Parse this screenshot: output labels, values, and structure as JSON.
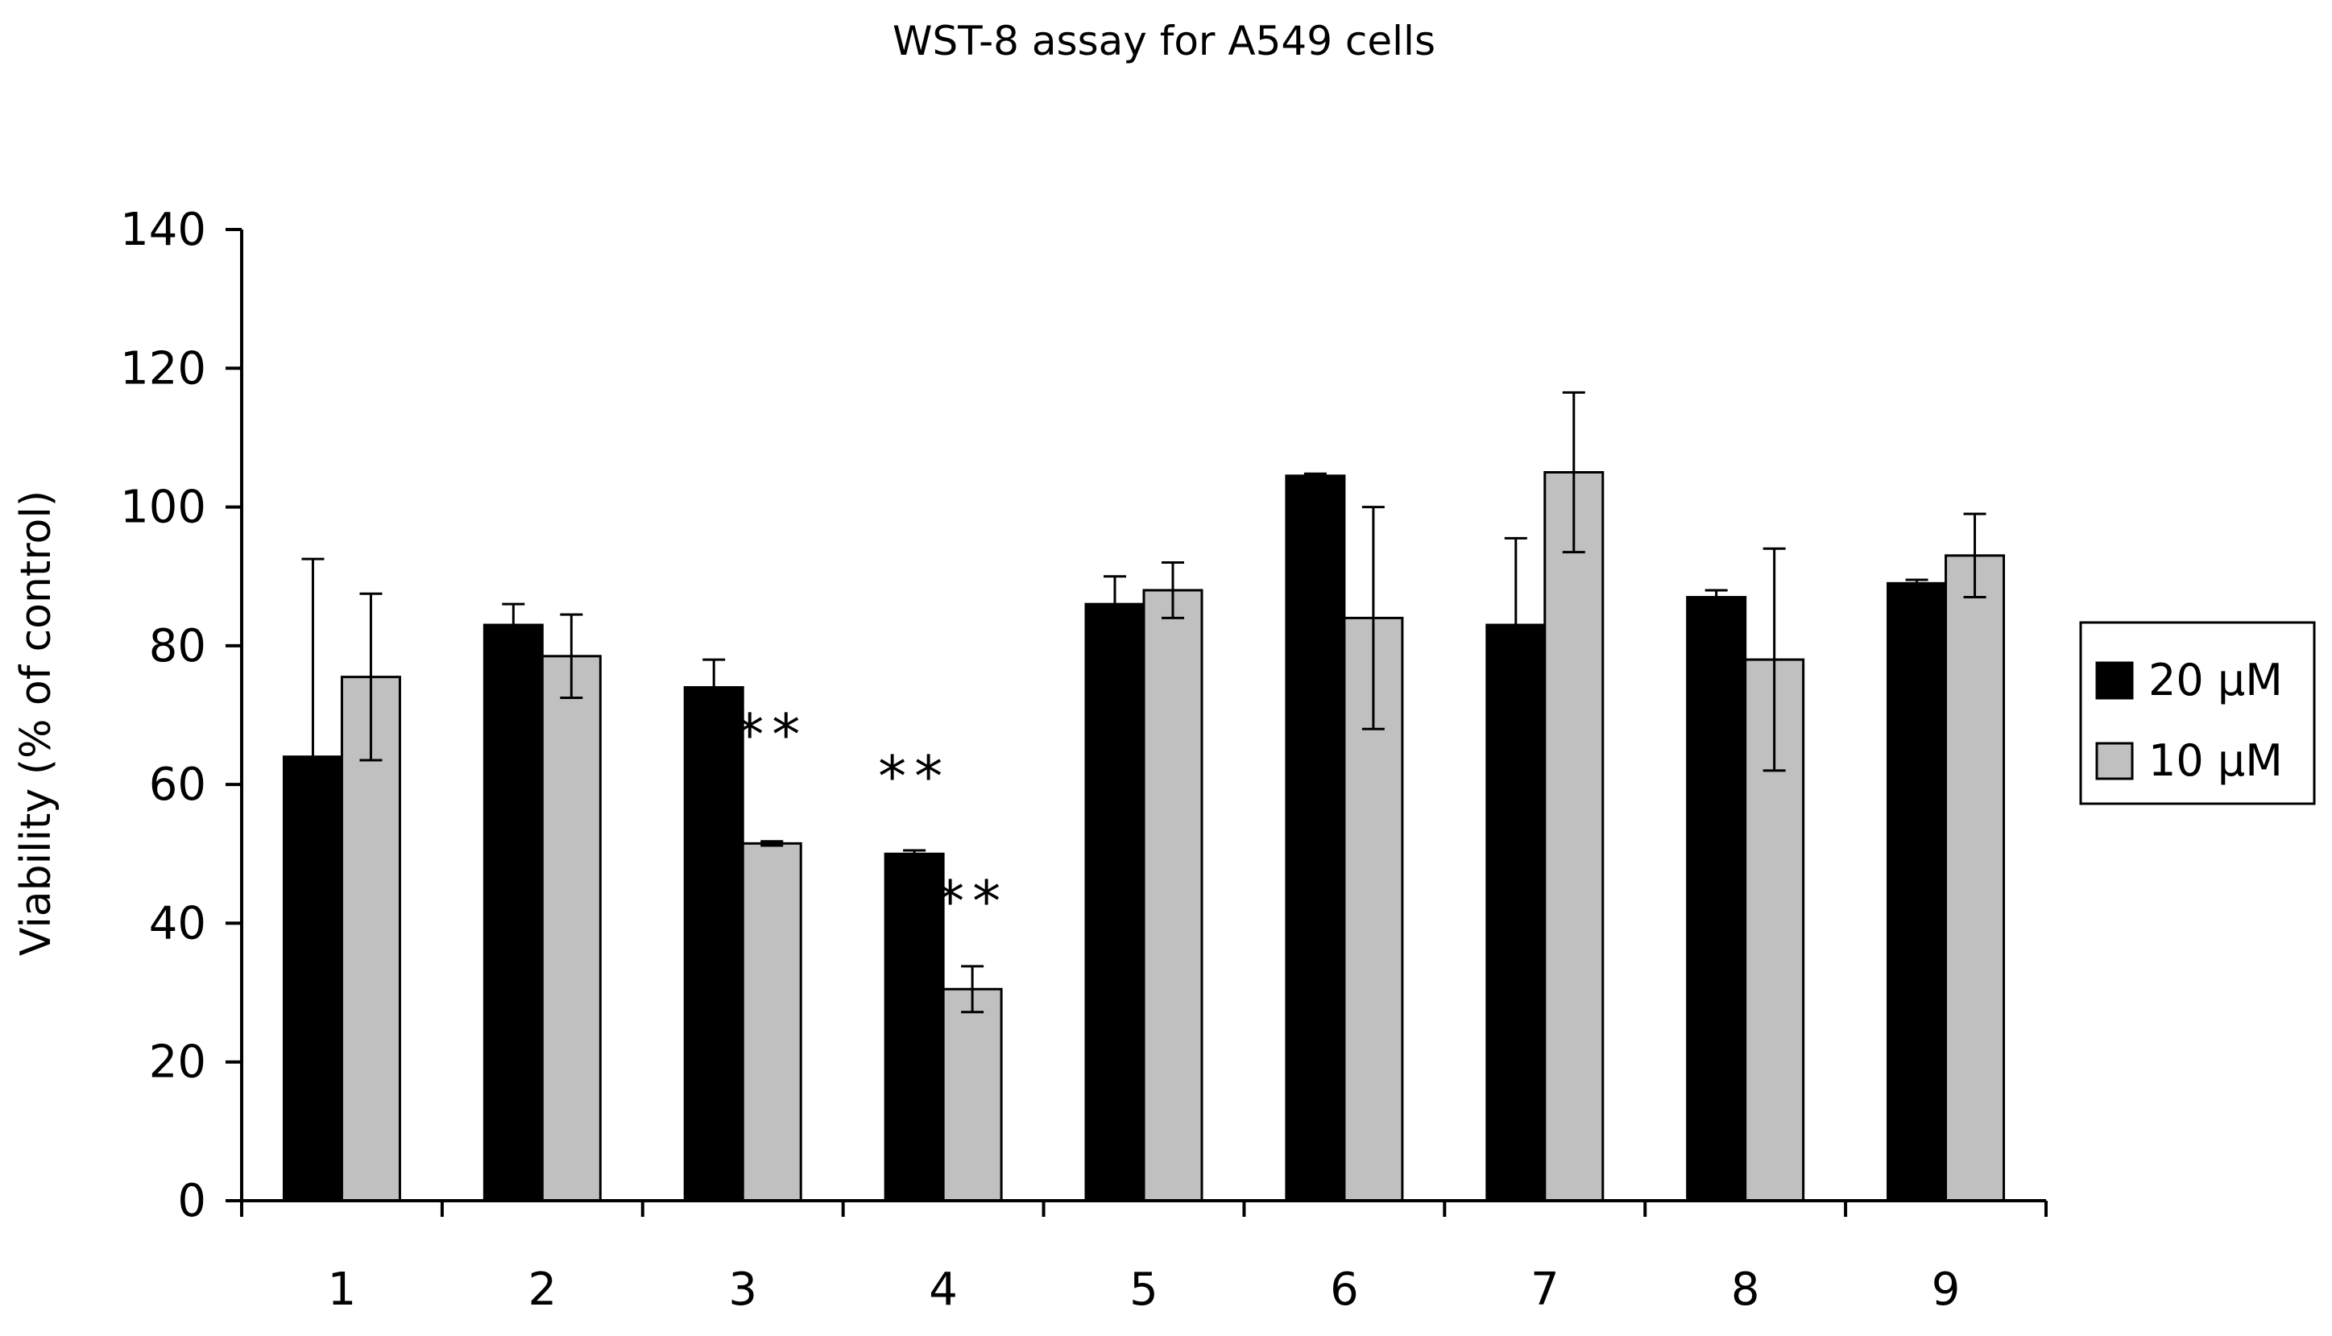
{
  "chart_data": {
    "type": "bar",
    "title": "WST-8 assay for A549 cells",
    "xlabel": "",
    "ylabel": "Viability (% of control)",
    "ylim": [
      0,
      140
    ],
    "yticks": [
      0,
      20,
      40,
      60,
      80,
      100,
      120,
      140
    ],
    "categories": [
      "1",
      "2",
      "3",
      "4",
      "5",
      "6",
      "7",
      "8",
      "9"
    ],
    "series": [
      {
        "name": "20 µM",
        "color": "#000000",
        "values": [
          64,
          83,
          74,
          50,
          86,
          104.5,
          83,
          87,
          89
        ],
        "errors": [
          28.5,
          3,
          4,
          0.5,
          4,
          0.3,
          12.5,
          1,
          0.5
        ]
      },
      {
        "name": "10 µM",
        "color": "#c0c0c0",
        "values": [
          75.5,
          78.5,
          51.5,
          30.5,
          88,
          84,
          105,
          78,
          93
        ],
        "errors": [
          12,
          6,
          0.3,
          3.3,
          4,
          16,
          11.5,
          16,
          6
        ]
      }
    ],
    "legend_position": "right",
    "annotations": [
      {
        "text": "**",
        "category": "3",
        "series": "10 µM",
        "y": 69
      },
      {
        "text": "**",
        "category": "4",
        "series": "20 µM",
        "y": 63
      },
      {
        "text": "**",
        "category": "4",
        "series": "10 µM",
        "y": 45
      }
    ]
  }
}
